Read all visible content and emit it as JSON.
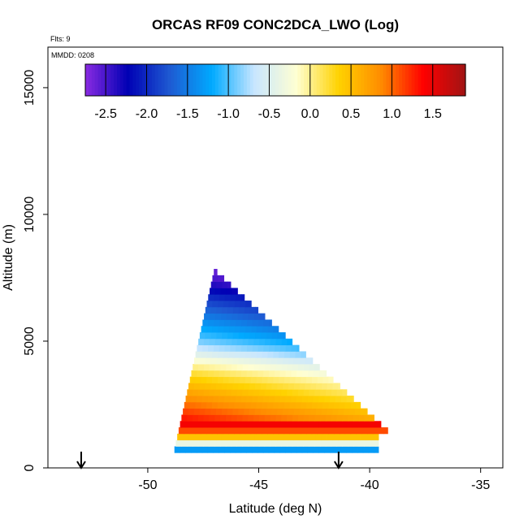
{
  "chart_data": {
    "type": "heatmap",
    "title": "ORCAS RF09 CONC2DCA_LWO (Log)",
    "flights_note": "Flts: 9",
    "date_note": "MMDD: 0208",
    "xlabel": "Latitude (deg N)",
    "ylabel": "Altitude (m)",
    "xlim": [
      -54.5,
      -34.0
    ],
    "ylim": [
      0,
      16600
    ],
    "x_ticks": [
      -50,
      -45,
      -40,
      -35
    ],
    "y_ticks": [
      0,
      5000,
      10000,
      15000
    ],
    "grid": false,
    "colorbar": {
      "placement": "top",
      "min": -2.75,
      "max": 1.9,
      "ticks": [
        -2.5,
        -2.0,
        -1.5,
        -1.0,
        -0.5,
        0.0,
        0.5,
        1.0,
        1.5
      ],
      "tick_labels": [
        "-2.5",
        "-2.0",
        "-1.5",
        "-1.0",
        "-0.5",
        "0.0",
        "0.5",
        "1.0",
        "1.5"
      ],
      "colors": [
        "#8a2be2",
        "#0000b4",
        "#1e5ad2",
        "#00aaff",
        "#c8e6ff",
        "#ffffd2",
        "#ffd200",
        "#ff8c00",
        "#ff0000",
        "#a01414"
      ]
    },
    "data_region": {
      "bottom_left": [
        -48.8,
        600
      ],
      "bottom_right": [
        -39.0,
        1200
      ],
      "apex": [
        -47.0,
        7700
      ]
    },
    "altitude_profile": [
      {
        "alt": 7500,
        "value": -2.6
      },
      {
        "alt": 7000,
        "value": -2.3
      },
      {
        "alt": 6500,
        "value": -1.9
      },
      {
        "alt": 6000,
        "value": -1.6
      },
      {
        "alt": 5500,
        "value": -1.3
      },
      {
        "alt": 5000,
        "value": -1.0
      },
      {
        "alt": 4500,
        "value": -0.6
      },
      {
        "alt": 4000,
        "value": -0.1
      },
      {
        "alt": 3500,
        "value": 0.3
      },
      {
        "alt": 3000,
        "value": 0.6
      },
      {
        "alt": 2500,
        "value": 0.9
      },
      {
        "alt": 2000,
        "value": 1.2
      },
      {
        "alt": 1500,
        "value": 1.5
      },
      {
        "alt": 1000,
        "value": 0.2
      },
      {
        "alt": 600,
        "value": -1.3
      }
    ],
    "markers": [
      {
        "x": -53.0,
        "label": "arrow"
      },
      {
        "x": -41.4,
        "label": "arrow"
      }
    ]
  }
}
